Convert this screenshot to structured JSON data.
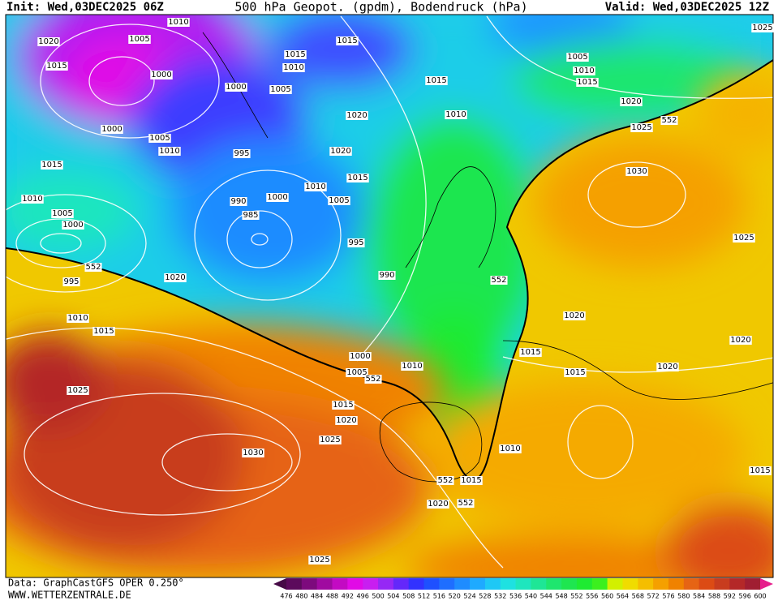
{
  "header": {
    "init": "Init: Wed,03DEC2025 06Z",
    "title": "500 hPa Geopot. (gpdm), Bodendruck (hPa)",
    "valid": "Valid: Wed,03DEC2025 12Z"
  },
  "footer": {
    "source": "Data: GraphCastGFS OPER 0.250°",
    "site": "WWW.WETTERZENTRALE.DE"
  },
  "isobar_labels": [
    "1010",
    "1005",
    "1020",
    "1015",
    "1015",
    "1010",
    "1015",
    "1000",
    "1000",
    "1005",
    "1020",
    "1010",
    "1015",
    "1005",
    "1010",
    "1015",
    "1020",
    "1025",
    "552",
    "1000",
    "1005",
    "1010",
    "995",
    "1020",
    "1015",
    "1015",
    "1010",
    "1030",
    "1010",
    "990",
    "1000",
    "1005",
    "985",
    "1005",
    "1000",
    "995",
    "1025",
    "552",
    "990",
    "995",
    "1020",
    "552",
    "1020",
    "1010",
    "1015",
    "1020",
    "1015",
    "1000",
    "1010",
    "1005",
    "552",
    "1015",
    "1020",
    "1025",
    "1015",
    "1020",
    "1025",
    "1010",
    "1030",
    "1015",
    "1015",
    "552",
    "1020",
    "552",
    "1025",
    "1025"
  ],
  "colorbar": {
    "ticks": [
      476,
      480,
      484,
      488,
      492,
      496,
      500,
      504,
      508,
      512,
      516,
      520,
      524,
      528,
      532,
      536,
      540,
      544,
      548,
      552,
      556,
      560,
      564,
      568,
      572,
      576,
      580,
      584,
      588,
      592,
      596,
      600
    ],
    "colors": [
      "#460a46",
      "#5c0a5c",
      "#7d0a7d",
      "#a00aa0",
      "#c30ac3",
      "#e10ae6",
      "#c81ef0",
      "#9628f5",
      "#6428fa",
      "#3232ff",
      "#1e50ff",
      "#1e6eff",
      "#1e8cff",
      "#1eaaff",
      "#1ec8f5",
      "#1ee1e1",
      "#1ee6be",
      "#1ee696",
      "#1ee66e",
      "#1ee650",
      "#1eeb32",
      "#3cf01e",
      "#d2f000",
      "#f0dc00",
      "#f5be00",
      "#f5a000",
      "#f08200",
      "#e66414",
      "#dc4b14",
      "#c83c1e",
      "#b42828",
      "#a01e32",
      "#e61e8c"
    ]
  }
}
